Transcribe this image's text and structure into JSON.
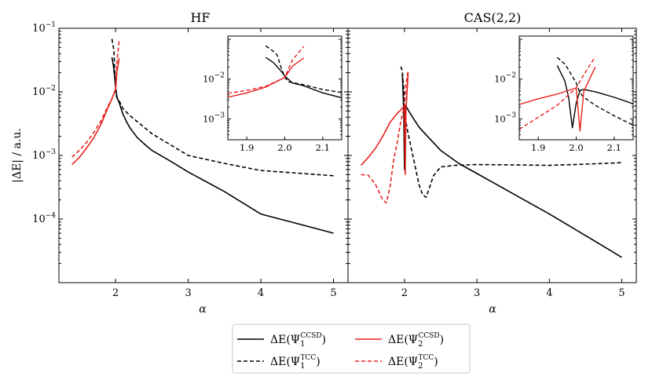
{
  "chart_data": {
    "type": "line",
    "ylabel": "|ΔE| / a.u.",
    "yscale": "log",
    "colors": {
      "black": "#000000",
      "red": "#e8211d"
    },
    "legend": {
      "location": "bottom-center",
      "entries": [
        {
          "key": "ccsd1",
          "label": "ΔE(Ψ1^CCSD)",
          "base": "ΔE(Ψ",
          "sub": "1",
          "sup": "CCSD",
          "end": ")",
          "color": "black",
          "dash": "solid"
        },
        {
          "key": "tcc1",
          "label": "ΔE(Ψ1^TCC)",
          "base": "ΔE(Ψ",
          "sub": "1",
          "sup": "TCC",
          "end": ")",
          "color": "black",
          "dash": "dashed"
        },
        {
          "key": "ccsd2",
          "label": "ΔE(Ψ2^CCSD)",
          "base": "ΔE(Ψ",
          "sub": "2",
          "sup": "CCSD",
          "end": ")",
          "color": "red",
          "dash": "solid"
        },
        {
          "key": "tcc2",
          "label": "ΔE(Ψ2^TCC)",
          "base": "ΔE(Ψ",
          "sub": "2",
          "sup": "TCC",
          "end": ")",
          "color": "red",
          "dash": "dashed"
        }
      ]
    },
    "panels": [
      {
        "title": "HF",
        "xlabel": "α",
        "xlim": [
          1.22,
          5.2
        ],
        "ylim": [
          1e-05,
          0.1
        ],
        "xticks": [
          2,
          3,
          4,
          5
        ],
        "xtick_labels": [
          "2",
          "3",
          "4",
          "5"
        ],
        "yticks": [
          0.0001,
          0.001,
          0.01,
          0.1
        ],
        "ytick_labels": [
          {
            "base": "10",
            "exp": "−4"
          },
          {
            "base": "10",
            "exp": "−3"
          },
          {
            "base": "10",
            "exp": "−2"
          },
          {
            "base": "10",
            "exp": "−1"
          }
        ],
        "series": [
          {
            "key": "ccsd1",
            "x": [
              1.95,
              1.97,
              1.99,
              2.0,
              2.02,
              2.05,
              2.1,
              2.15,
              2.2,
              2.3,
              2.4,
              2.5,
              2.75,
              3.0,
              3.5,
              4.0,
              4.5,
              5.0
            ],
            "y": [
              0.035,
              0.026,
              0.016,
              0.012,
              0.008,
              0.0068,
              0.0045,
              0.0034,
              0.0027,
              0.0019,
              0.0015,
              0.0012,
              0.00082,
              0.00055,
              0.00027,
              0.00012,
              8.5e-05,
              6e-05
            ]
          },
          {
            "key": "tcc1",
            "x": [
              1.95,
              1.97,
              1.98,
              1.99,
              2.0,
              2.01,
              2.02,
              2.05,
              2.1,
              2.2,
              2.3,
              2.5,
              3.0,
              3.5,
              4.0,
              5.0
            ],
            "y": [
              0.068,
              0.05,
              0.04,
              0.02,
              0.011,
              0.0085,
              0.0082,
              0.0072,
              0.0055,
              0.0042,
              0.0034,
              0.0022,
              0.001,
              0.00075,
              0.00058,
              0.00048
            ]
          },
          {
            "key": "ccsd2",
            "x": [
              1.4,
              1.5,
              1.6,
              1.7,
              1.8,
              1.9,
              1.95,
              2.0,
              2.02,
              2.05
            ],
            "y": [
              0.00072,
              0.00093,
              0.0013,
              0.0019,
              0.0031,
              0.0058,
              0.0078,
              0.011,
              0.021,
              0.034
            ]
          },
          {
            "key": "tcc2",
            "x": [
              1.4,
              1.5,
              1.6,
              1.7,
              1.8,
              1.9,
              1.95,
              2.0,
              2.02,
              2.05
            ],
            "y": [
              0.00094,
              0.0012,
              0.0016,
              0.0023,
              0.0035,
              0.0061,
              0.0078,
              0.011,
              0.03,
              0.066
            ]
          }
        ],
        "inset": {
          "xlim": [
            1.85,
            2.15
          ],
          "ylim": [
            0.0003,
            0.12
          ],
          "xticks": [
            1.9,
            2.0,
            2.1
          ],
          "xtick_labels": [
            "1.9",
            "2.0",
            "2.1"
          ],
          "yticks": [
            0.001,
            0.01
          ],
          "ytick_labels": [
            {
              "base": "10",
              "exp": "−3"
            },
            {
              "base": "10",
              "exp": "−2"
            }
          ],
          "series": [
            {
              "key": "ccsd1",
              "x": [
                1.95,
                1.97,
                1.99,
                2.0,
                2.02,
                2.05,
                2.1,
                2.15
              ],
              "y": [
                0.035,
                0.026,
                0.016,
                0.012,
                0.008,
                0.0068,
                0.0045,
                0.0034
              ]
            },
            {
              "key": "tcc1",
              "x": [
                1.95,
                1.97,
                1.98,
                1.99,
                2.0,
                2.01,
                2.02,
                2.05,
                2.1,
                2.15
              ],
              "y": [
                0.068,
                0.05,
                0.04,
                0.02,
                0.011,
                0.0085,
                0.0082,
                0.0072,
                0.0055,
                0.0046
              ]
            },
            {
              "key": "ccsd2",
              "x": [
                1.85,
                1.9,
                1.95,
                2.0,
                2.02,
                2.05
              ],
              "y": [
                0.0035,
                0.0045,
                0.0063,
                0.011,
                0.021,
                0.034
              ]
            },
            {
              "key": "tcc2",
              "x": [
                1.85,
                1.9,
                1.95,
                2.0,
                2.02,
                2.05
              ],
              "y": [
                0.0044,
                0.0052,
                0.0066,
                0.011,
                0.03,
                0.066
              ]
            }
          ]
        }
      },
      {
        "title": "CAS(2,2)",
        "xlabel": "α",
        "xlim": [
          1.22,
          5.2
        ],
        "ylim": [
          1e-05,
          0.1
        ],
        "xticks": [
          2,
          3,
          4,
          5
        ],
        "xtick_labels": [
          "2",
          "3",
          "4",
          "5"
        ],
        "yticks": [
          0.0001,
          0.001,
          0.01,
          0.1
        ],
        "ytick_labels": [],
        "series": [
          {
            "key": "ccsd1",
            "x": [
              1.97,
              1.98,
              1.99,
              2.0,
              2.01,
              2.02,
              2.05,
              2.1,
              2.2,
              2.3,
              2.5,
              2.75,
              3.0,
              3.5,
              4.0,
              4.5,
              5.0
            ],
            "y": [
              0.02,
              0.01,
              0.0045,
              0.0006,
              0.0052,
              0.006,
              0.0052,
              0.0042,
              0.0028,
              0.0021,
              0.0012,
              0.00075,
              0.00052,
              0.00025,
              0.00012,
              5.5e-05,
              2.5e-05
            ]
          },
          {
            "key": "tcc1",
            "x": [
              1.95,
              1.97,
              1.98,
              2.0,
              2.01,
              2.02,
              2.05,
              2.1,
              2.2,
              2.25,
              2.3,
              2.4,
              2.5,
              2.7,
              3.0,
              3.5,
              4.0,
              4.5,
              5.0
            ],
            "y": [
              0.025,
              0.021,
              0.015,
              0.008,
              0.0045,
              0.0034,
              0.0022,
              0.0012,
              0.00035,
              0.00024,
              0.00022,
              0.00048,
              0.00066,
              0.0007,
              0.00072,
              0.00071,
              0.0007,
              0.00073,
              0.00077
            ]
          },
          {
            "key": "ccsd2",
            "x": [
              1.4,
              1.5,
              1.6,
              1.7,
              1.8,
              1.9,
              1.95,
              2.0,
              2.01,
              2.02,
              2.05
            ],
            "y": [
              0.0007,
              0.00093,
              0.0013,
              0.002,
              0.0033,
              0.0046,
              0.0052,
              0.006,
              0.0005,
              0.0049,
              0.02
            ]
          },
          {
            "key": "tcc2",
            "x": [
              1.4,
              1.5,
              1.6,
              1.7,
              1.75,
              1.8,
              1.85,
              1.9,
              1.95,
              2.0,
              2.02,
              2.05
            ],
            "y": [
              0.0005,
              0.00049,
              0.00035,
              0.0002,
              0.00018,
              0.00032,
              0.00085,
              0.0016,
              0.0035,
              0.006,
              0.013,
              0.022
            ]
          }
        ],
        "inset": {
          "xlim": [
            1.85,
            2.15
          ],
          "ylim": [
            0.0003,
            0.12
          ],
          "xticks": [
            1.9,
            2.0,
            2.1
          ],
          "xtick_labels": [
            "1.9",
            "2.0",
            "2.1"
          ],
          "yticks": [
            0.001,
            0.01
          ],
          "ytick_labels": [
            {
              "base": "10",
              "exp": "−3"
            },
            {
              "base": "10",
              "exp": "−2"
            }
          ],
          "series": [
            {
              "key": "ccsd1",
              "x": [
                1.95,
                1.97,
                1.98,
                1.99,
                2.0,
                2.01,
                2.02,
                2.05,
                2.1,
                2.15
              ],
              "y": [
                0.022,
                0.009,
                0.0035,
                0.0006,
                0.0025,
                0.0052,
                0.0055,
                0.0048,
                0.0035,
                0.0024
              ]
            },
            {
              "key": "tcc1",
              "x": [
                1.95,
                1.97,
                1.98,
                2.0,
                2.01,
                2.02,
                2.05,
                2.1,
                2.15
              ],
              "y": [
                0.035,
                0.024,
                0.017,
                0.008,
                0.0045,
                0.0035,
                0.0022,
                0.0012,
                0.0007
              ]
            },
            {
              "key": "ccsd2",
              "x": [
                1.85,
                1.9,
                1.95,
                2.0,
                2.01,
                2.02,
                2.05
              ],
              "y": [
                0.0023,
                0.0032,
                0.0042,
                0.006,
                0.0005,
                0.0049,
                0.02
              ]
            },
            {
              "key": "tcc2",
              "x": [
                1.85,
                1.9,
                1.95,
                2.0,
                2.02,
                2.05
              ],
              "y": [
                0.00055,
                0.0011,
                0.0022,
                0.006,
                0.013,
                0.036
              ]
            }
          ]
        }
      }
    ]
  }
}
